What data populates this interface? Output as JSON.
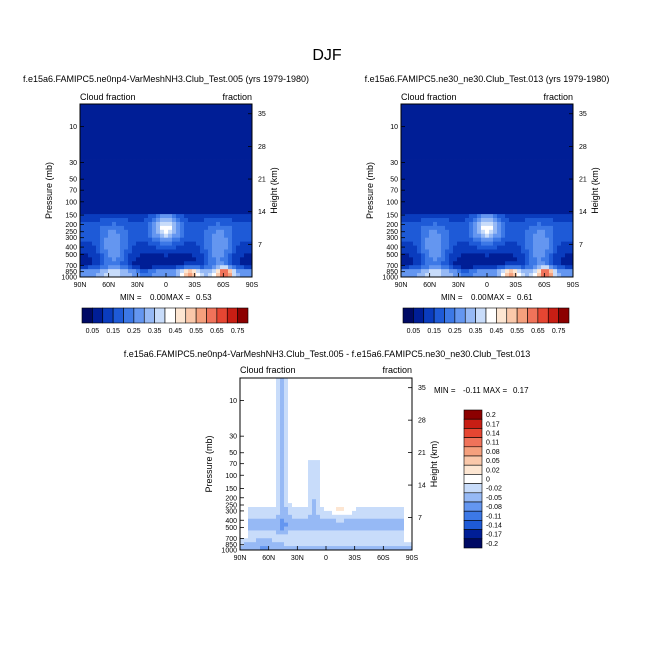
{
  "main_title": "DJF",
  "chart_data": [
    {
      "type": "heatmap",
      "title": "f.e15a6.FAMIPC5.ne0np4-VarMeshNH3.Club_Test.005 (yrs 1979-1980)",
      "left_label": "Cloud fraction",
      "right_label": "fraction",
      "xlabel": "",
      "ylabel": "Pressure (mb)",
      "ylabel_right": "Height (km)",
      "x_ticks": [
        "90N",
        "60N",
        "30N",
        "0",
        "30S",
        "60S",
        "90S"
      ],
      "y_ticks": [
        "10",
        "30",
        "50",
        "70",
        "100",
        "150",
        "200",
        "250",
        "300",
        "400",
        "500",
        "700",
        "850",
        "1000"
      ],
      "y_ticks_right": [
        "35",
        "28",
        "21",
        "14",
        "7"
      ],
      "min": 0.0,
      "max": 0.53,
      "min_label": "MIN =",
      "max_label": "MAX =",
      "min_text": "0.00",
      "max_text": "0.53",
      "colorbar_levels": [
        "0.05",
        "0.15",
        "0.25",
        "0.35",
        "0.45",
        "0.55",
        "0.65",
        "0.75"
      ]
    },
    {
      "type": "heatmap",
      "title": "f.e15a6.FAMIPC5.ne30_ne30.Club_Test.013 (yrs 1979-1980)",
      "left_label": "Cloud fraction",
      "right_label": "fraction",
      "xlabel": "",
      "ylabel": "Pressure (mb)",
      "ylabel_right": "Height (km)",
      "x_ticks": [
        "90N",
        "60N",
        "30N",
        "0",
        "30S",
        "60S",
        "90S"
      ],
      "y_ticks": [
        "10",
        "30",
        "50",
        "70",
        "100",
        "150",
        "200",
        "250",
        "300",
        "400",
        "500",
        "700",
        "850",
        "1000"
      ],
      "y_ticks_right": [
        "35",
        "28",
        "21",
        "14",
        "7"
      ],
      "min": 0.0,
      "max": 0.61,
      "min_label": "MIN =",
      "max_label": "MAX =",
      "min_text": "0.00",
      "max_text": "0.61",
      "colorbar_levels": [
        "0.05",
        "0.15",
        "0.25",
        "0.35",
        "0.45",
        "0.55",
        "0.65",
        "0.75"
      ]
    },
    {
      "type": "heatmap",
      "title": "f.e15a6.FAMIPC5.ne0np4-VarMeshNH3.Club_Test.005 - f.e15a6.FAMIPC5.ne30_ne30.Club_Test.013",
      "left_label": "Cloud fraction",
      "right_label": "fraction",
      "xlabel": "",
      "ylabel": "Pressure (mb)",
      "ylabel_right": "Height (km)",
      "x_ticks": [
        "90N",
        "60N",
        "30N",
        "0",
        "30S",
        "60S",
        "90S"
      ],
      "y_ticks": [
        "10",
        "30",
        "50",
        "70",
        "100",
        "150",
        "200",
        "250",
        "300",
        "400",
        "500",
        "700",
        "850",
        "1000"
      ],
      "y_ticks_right": [
        "35",
        "28",
        "21",
        "14",
        "7"
      ],
      "min": -0.11,
      "max": 0.17,
      "min_label": "MIN =",
      "max_label": "MAX =",
      "min_text": "-0.11",
      "max_text": "0.17",
      "colorbar_levels": [
        "0.2",
        "0.17",
        "0.14",
        "0.11",
        "0.08",
        "0.05",
        "0.02",
        "0",
        "-0.02",
        "-0.05",
        "-0.08",
        "-0.11",
        "-0.14",
        "-0.17",
        "-0.2"
      ]
    }
  ],
  "colors": {
    "abs_scale": [
      "#000a64",
      "#001e96",
      "#0a3cbe",
      "#1e5ad7",
      "#3c78e6",
      "#6496f0",
      "#96b9f5",
      "#c8dcfa",
      "#ffffff",
      "#fde6d2",
      "#fac8aa",
      "#f5a07d",
      "#f0735a",
      "#e64632",
      "#c81e14",
      "#8c0000"
    ],
    "diff_scale": [
      "#8c0000",
      "#c81e14",
      "#e64632",
      "#f0735a",
      "#f5a07d",
      "#fac8aa",
      "#fde6d2",
      "#ffffff",
      "#c8dcfa",
      "#96b9f5",
      "#6496f0",
      "#3c78e6",
      "#1e5ad7",
      "#001e96",
      "#000a64"
    ]
  }
}
